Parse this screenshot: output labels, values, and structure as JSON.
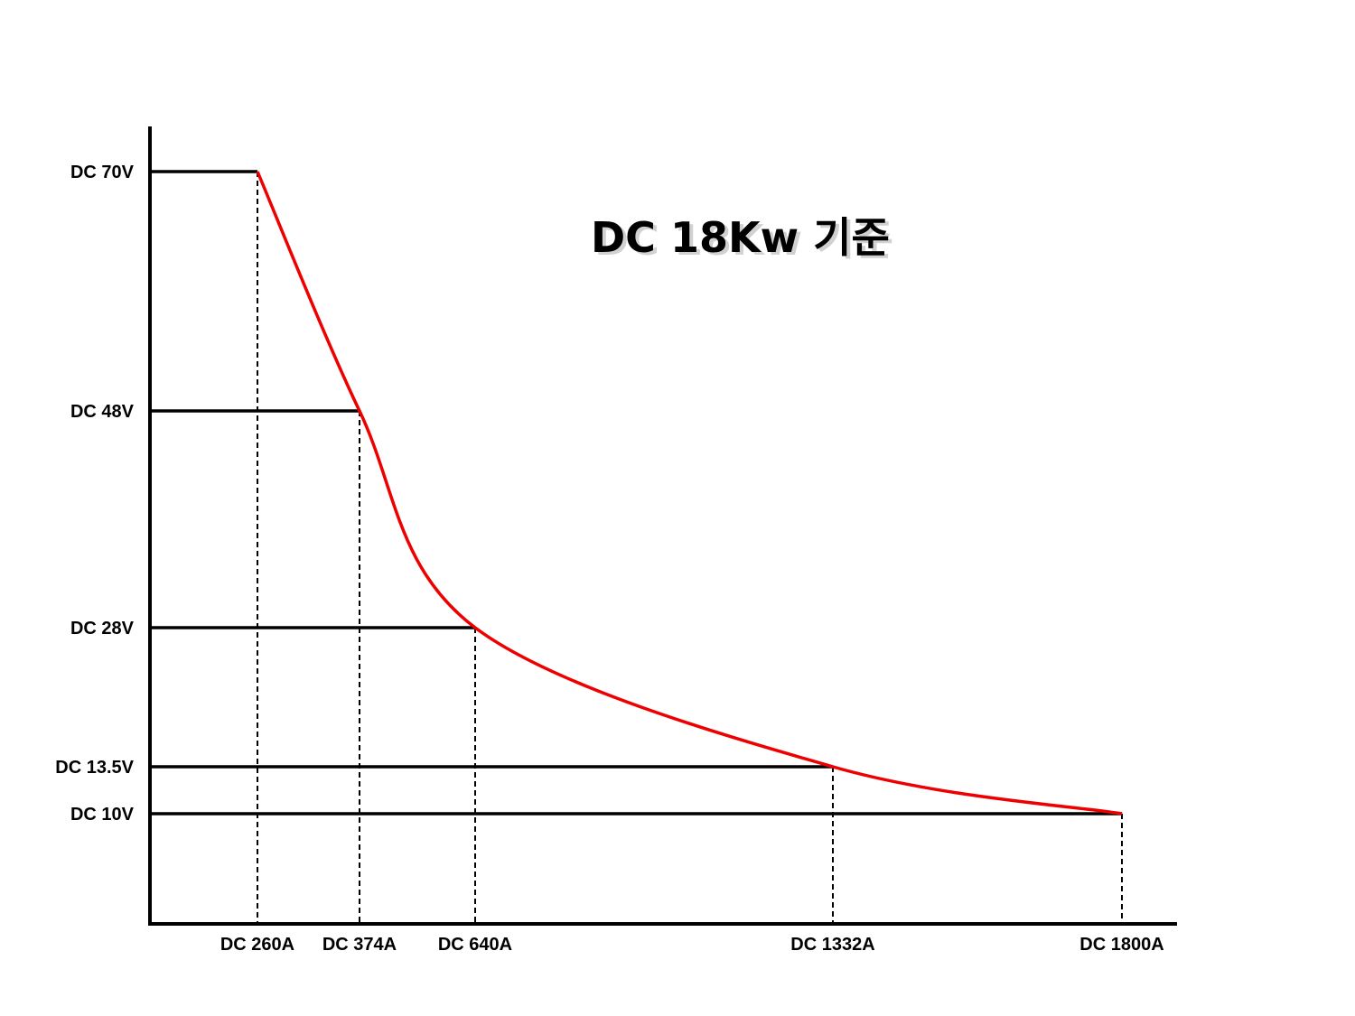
{
  "chart_data": {
    "type": "line",
    "title": "DC 18Kw 기준",
    "xlabel": "",
    "ylabel": "",
    "grid": false,
    "x_ticks": [
      {
        "value": 260,
        "label": "DC 260A"
      },
      {
        "value": 374,
        "label": "DC 374A"
      },
      {
        "value": 640,
        "label": "DC 640A"
      },
      {
        "value": 1332,
        "label": "DC 1332A"
      },
      {
        "value": 1800,
        "label": "DC 1800A"
      }
    ],
    "y_ticks": [
      {
        "value": 70,
        "label": "DC 70V"
      },
      {
        "value": 48,
        "label": "DC 48V"
      },
      {
        "value": 28,
        "label": "DC 28V"
      },
      {
        "value": 13.5,
        "label": "DC 13.5V"
      },
      {
        "value": 10,
        "label": "DC 10V"
      }
    ],
    "series": [
      {
        "color": "#ee0000",
        "points": [
          {
            "x": 260,
            "y": 70
          },
          {
            "x": 374,
            "y": 48
          },
          {
            "x": 640,
            "y": 28
          },
          {
            "x": 1332,
            "y": 13.5
          },
          {
            "x": 1800,
            "y": 10
          }
        ]
      }
    ],
    "line_color": "#ee0000",
    "axis_color": "#000000"
  }
}
